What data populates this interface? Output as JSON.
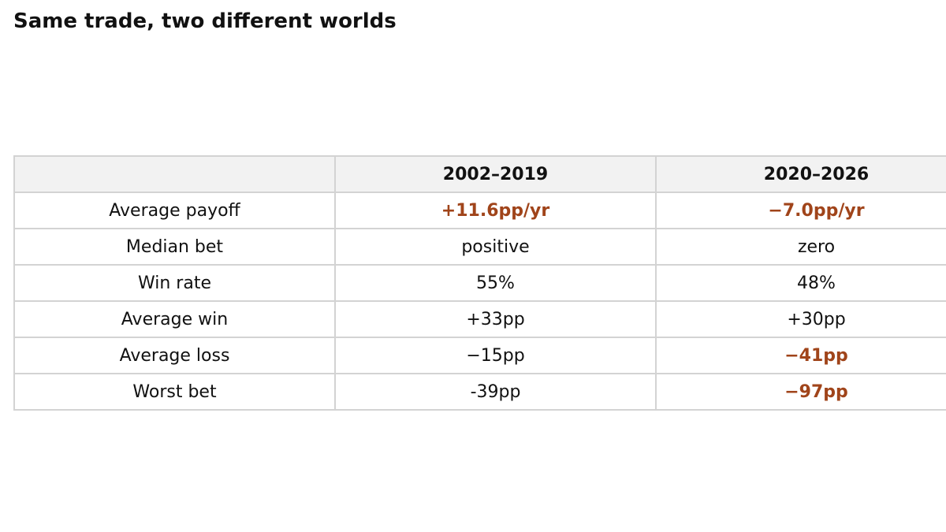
{
  "header": {
    "title": "Same trade, two different worlds"
  },
  "table": {
    "columns": [
      "2002–2019",
      "2020–2026"
    ],
    "emphasis_color": "#a0441a",
    "rows": [
      {
        "label": "Average payoff",
        "cells": [
          "+11.6pp/yr",
          "−7.0pp/yr"
        ],
        "emphasized": [
          true,
          true
        ]
      },
      {
        "label": "Median bet",
        "cells": [
          "positive",
          "zero"
        ],
        "emphasized": [
          false,
          false
        ]
      },
      {
        "label": "Win rate",
        "cells": [
          "55%",
          "48%"
        ],
        "emphasized": [
          false,
          false
        ]
      },
      {
        "label": "Average win",
        "cells": [
          "+33pp",
          "+30pp"
        ],
        "emphasized": [
          false,
          false
        ]
      },
      {
        "label": "Average loss",
        "cells": [
          "−15pp",
          "−41pp"
        ],
        "emphasized": [
          false,
          true
        ]
      },
      {
        "label": "Worst bet",
        "cells": [
          "-39pp",
          "−97pp"
        ],
        "emphasized": [
          false,
          true
        ]
      }
    ]
  }
}
